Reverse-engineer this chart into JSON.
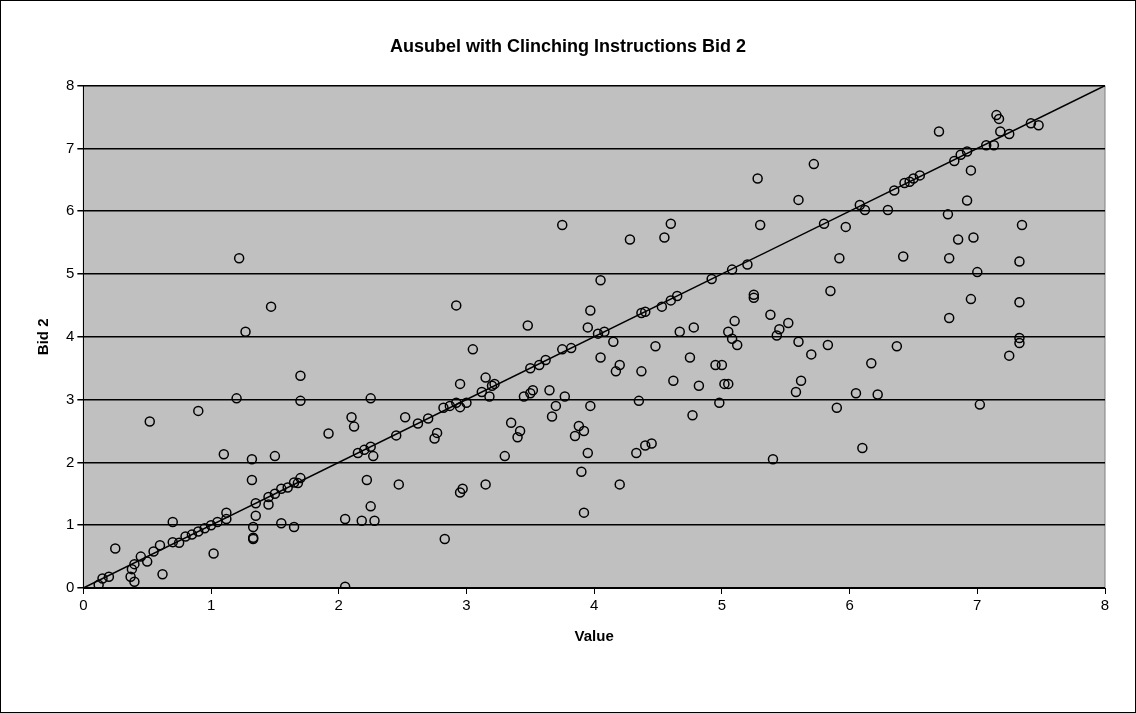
{
  "chart_data": {
    "type": "scatter",
    "title": "Ausubel with Clinching Instructions Bid 2",
    "xlabel": "Value",
    "ylabel": "Bid 2",
    "xlim": [
      0,
      8
    ],
    "xticks": [
      0,
      1,
      2,
      3,
      4,
      5,
      6,
      7,
      8
    ],
    "ylim": [
      0,
      8
    ],
    "yticks": [
      0,
      1,
      2,
      3,
      4,
      5,
      6,
      7,
      8
    ],
    "grid": "y",
    "legend": false,
    "marker": "circle",
    "series": [
      {
        "color": "#000000",
        "x": [
          0.12,
          0.15,
          0.2,
          0.25,
          0.37,
          0.38,
          0.4,
          0.4,
          0.45,
          0.5,
          0.52,
          0.55,
          0.6,
          0.62,
          0.7,
          0.7,
          0.75,
          0.8,
          0.85,
          0.9,
          0.9,
          0.95,
          1.0,
          1.02,
          1.05,
          1.1,
          1.12,
          1.12,
          1.2,
          1.22,
          1.27,
          1.32,
          1.32,
          1.33,
          1.33,
          1.33,
          1.35,
          1.35,
          1.45,
          1.45,
          1.47,
          1.5,
          1.5,
          1.55,
          1.55,
          1.6,
          1.65,
          1.65,
          1.68,
          1.7,
          1.7,
          1.7,
          1.92,
          2.05,
          2.05,
          2.1,
          2.12,
          2.15,
          2.18,
          2.2,
          2.22,
          2.25,
          2.25,
          2.25,
          2.27,
          2.28,
          2.45,
          2.47,
          2.52,
          2.62,
          2.7,
          2.75,
          2.77,
          2.82,
          2.83,
          2.87,
          2.92,
          2.92,
          2.95,
          2.95,
          2.95,
          2.97,
          3.0,
          3.05,
          3.12,
          3.15,
          3.15,
          3.18,
          3.2,
          3.22,
          3.3,
          3.35,
          3.4,
          3.42,
          3.45,
          3.48,
          3.5,
          3.52,
          3.5,
          3.57,
          3.62,
          3.65,
          3.67,
          3.7,
          3.75,
          3.75,
          3.77,
          3.82,
          3.85,
          3.88,
          3.9,
          3.92,
          3.92,
          3.95,
          3.97,
          3.97,
          3.95,
          4.03,
          4.05,
          4.05,
          4.08,
          4.15,
          4.17,
          4.2,
          4.2,
          4.28,
          4.33,
          4.35,
          4.37,
          4.37,
          4.4,
          4.4,
          4.45,
          4.48,
          4.53,
          4.55,
          4.6,
          4.6,
          4.62,
          4.65,
          4.67,
          4.75,
          4.77,
          4.78,
          4.82,
          4.92,
          4.95,
          4.98,
          5.0,
          5.02,
          5.05,
          5.05,
          5.08,
          5.08,
          5.1,
          5.12,
          5.2,
          5.25,
          5.25,
          5.28,
          5.3,
          5.38,
          5.4,
          5.43,
          5.45,
          5.52,
          5.58,
          5.6,
          5.6,
          5.62,
          5.7,
          5.72,
          5.8,
          5.83,
          5.85,
          5.9,
          5.92,
          5.97,
          6.05,
          6.08,
          6.1,
          6.12,
          6.17,
          6.22,
          6.3,
          6.35,
          6.37,
          6.42,
          6.43,
          6.47,
          6.5,
          6.55,
          6.7,
          6.77,
          6.78,
          6.78,
          6.82,
          6.85,
          6.87,
          6.92,
          6.92,
          6.95,
          6.95,
          6.97,
          7.0,
          7.02,
          7.07,
          7.13,
          7.15,
          7.17,
          7.18,
          7.25,
          7.25,
          7.33,
          7.33,
          7.33,
          7.33,
          7.35,
          7.42,
          7.48
        ],
        "values": [
          0.05,
          0.15,
          0.18,
          0.63,
          0.18,
          0.3,
          0.38,
          0.1,
          0.5,
          0.42,
          2.65,
          0.58,
          0.68,
          0.22,
          0.73,
          1.05,
          0.72,
          0.82,
          0.85,
          0.9,
          2.82,
          0.95,
          1.0,
          0.55,
          1.05,
          2.13,
          1.1,
          1.2,
          3.02,
          5.25,
          4.08,
          2.05,
          1.72,
          0.8,
          0.78,
          0.97,
          1.15,
          1.35,
          1.33,
          1.45,
          4.48,
          2.1,
          1.5,
          1.03,
          1.58,
          1.6,
          1.68,
          0.97,
          1.67,
          1.75,
          3.38,
          2.98,
          2.46,
          0.02,
          1.1,
          2.72,
          2.57,
          2.15,
          1.07,
          2.2,
          1.72,
          2.25,
          3.02,
          1.3,
          2.1,
          1.07,
          2.43,
          1.65,
          2.72,
          2.62,
          2.7,
          2.38,
          2.47,
          2.87,
          0.78,
          2.9,
          4.5,
          2.95,
          3.25,
          2.88,
          1.52,
          1.58,
          2.95,
          3.8,
          3.12,
          3.35,
          1.65,
          3.05,
          3.22,
          3.25,
          2.1,
          2.63,
          2.4,
          2.5,
          3.05,
          4.18,
          3.1,
          3.15,
          3.5,
          3.55,
          3.63,
          3.15,
          2.73,
          2.9,
          5.78,
          3.8,
          3.05,
          3.82,
          2.42,
          2.58,
          1.85,
          2.5,
          1.2,
          4.15,
          4.42,
          2.9,
          2.15,
          4.05,
          4.9,
          3.67,
          4.08,
          3.92,
          3.45,
          3.55,
          1.65,
          5.55,
          2.15,
          2.98,
          4.38,
          3.45,
          4.4,
          2.27,
          2.3,
          3.85,
          4.48,
          5.58,
          5.8,
          4.58,
          3.3,
          4.65,
          4.08,
          3.67,
          2.75,
          4.15,
          3.22,
          4.92,
          3.55,
          2.95,
          3.55,
          3.25,
          3.25,
          4.08,
          5.07,
          3.97,
          4.25,
          3.87,
          5.15,
          4.67,
          4.62,
          6.52,
          5.78,
          4.35,
          2.05,
          4.02,
          4.12,
          4.22,
          3.12,
          6.18,
          3.92,
          3.3,
          3.72,
          6.75,
          5.8,
          3.87,
          4.73,
          2.87,
          5.25,
          5.75,
          3.1,
          6.1,
          2.23,
          6.02,
          3.58,
          3.08,
          6.02,
          6.33,
          3.85,
          5.28,
          6.45,
          6.47,
          6.52,
          6.57,
          7.27,
          5.95,
          5.25,
          4.3,
          6.8,
          5.55,
          6.9,
          6.95,
          6.17,
          6.65,
          4.6,
          5.58,
          5.03,
          2.92,
          7.05,
          7.05,
          7.53,
          7.47,
          7.27,
          7.23,
          3.7,
          5.2,
          4.55,
          3.98,
          3.9,
          5.78,
          7.4,
          7.37
        ]
      },
      {
        "type": "line",
        "color": "#000000",
        "marker": "none",
        "x": [
          0,
          8
        ],
        "values": [
          0,
          8
        ]
      }
    ]
  }
}
